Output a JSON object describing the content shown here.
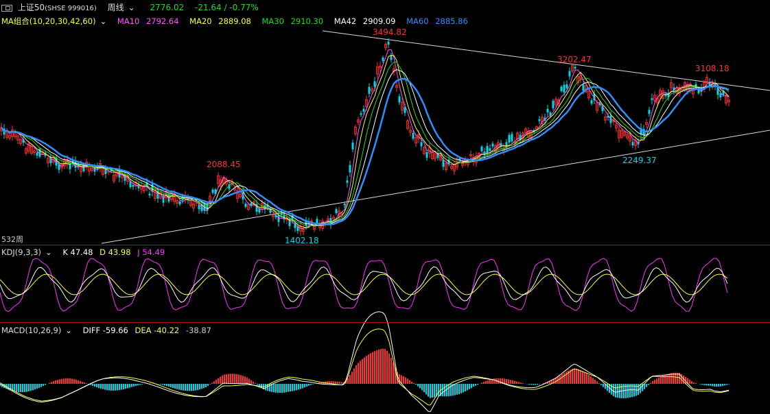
{
  "header": {
    "window_icon": "window-restore-icon",
    "symbol": "上证50",
    "code": "(SHSE 999016)",
    "period": "周线",
    "price": "2776.02",
    "change": "-21.64 / -0.77%"
  },
  "ma_panel": {
    "label": "MA组合(10,20,30,42,60)",
    "items": [
      {
        "name": "MA10",
        "value": "2792.64",
        "color": "#ff55ff"
      },
      {
        "name": "MA20",
        "value": "2889.08",
        "color": "#ffff40"
      },
      {
        "name": "MA30",
        "value": "2910.30",
        "color": "#22dd22"
      },
      {
        "name": "MA42",
        "value": "2909.09",
        "color": "#ffffff"
      },
      {
        "name": "MA60",
        "value": "2885.86",
        "color": "#2f8fff"
      }
    ],
    "bar_count": "532周"
  },
  "price_labels": {
    "high_1": "3494.82",
    "high_2": "3202.47",
    "high_3": "3108.18",
    "high_4": "2088.45",
    "low_1": "1402.18",
    "low_2": "2249.37"
  },
  "kdj_panel": {
    "label": "KDJ(9,3,3)",
    "k": "K 47.48",
    "d": "D 43.98",
    "j": "J 54.49"
  },
  "macd_panel": {
    "label": "MACD(10,26,9)",
    "diff": "DIFF -59.66",
    "dea": "DEA -40.22",
    "macd": "-38.87"
  },
  "colors": {
    "up": "#ff3232",
    "down": "#00d8e8",
    "ma10": "#ff55ff",
    "ma20": "#ffff40",
    "ma30": "#22dd22",
    "ma42": "#ffffff",
    "ma60": "#2f8fff",
    "separator": "#b01010"
  },
  "chart_data": {
    "type": "candlestick",
    "timeframe": "weekly",
    "bars": 532,
    "price_range": [
      1402.18,
      3494.82
    ],
    "key_points": [
      {
        "label": "high",
        "value": 2088.45
      },
      {
        "label": "low",
        "value": 1402.18
      },
      {
        "label": "high",
        "value": 3494.82
      },
      {
        "label": "high",
        "value": 3202.47
      },
      {
        "label": "low",
        "value": 2249.37
      },
      {
        "label": "high",
        "value": 3108.18
      },
      {
        "label": "last",
        "value": 2776.02
      }
    ],
    "indicators": {
      "MA10": 2792.64,
      "MA20": 2889.08,
      "MA30": 2910.3,
      "MA42": 2909.09,
      "MA60": 2885.86,
      "KDJ": {
        "K": 47.48,
        "D": 43.98,
        "J": 54.49
      },
      "MACD": {
        "DIFF": -59.66,
        "DEA": -40.22,
        "MACD": -38.87
      }
    }
  }
}
